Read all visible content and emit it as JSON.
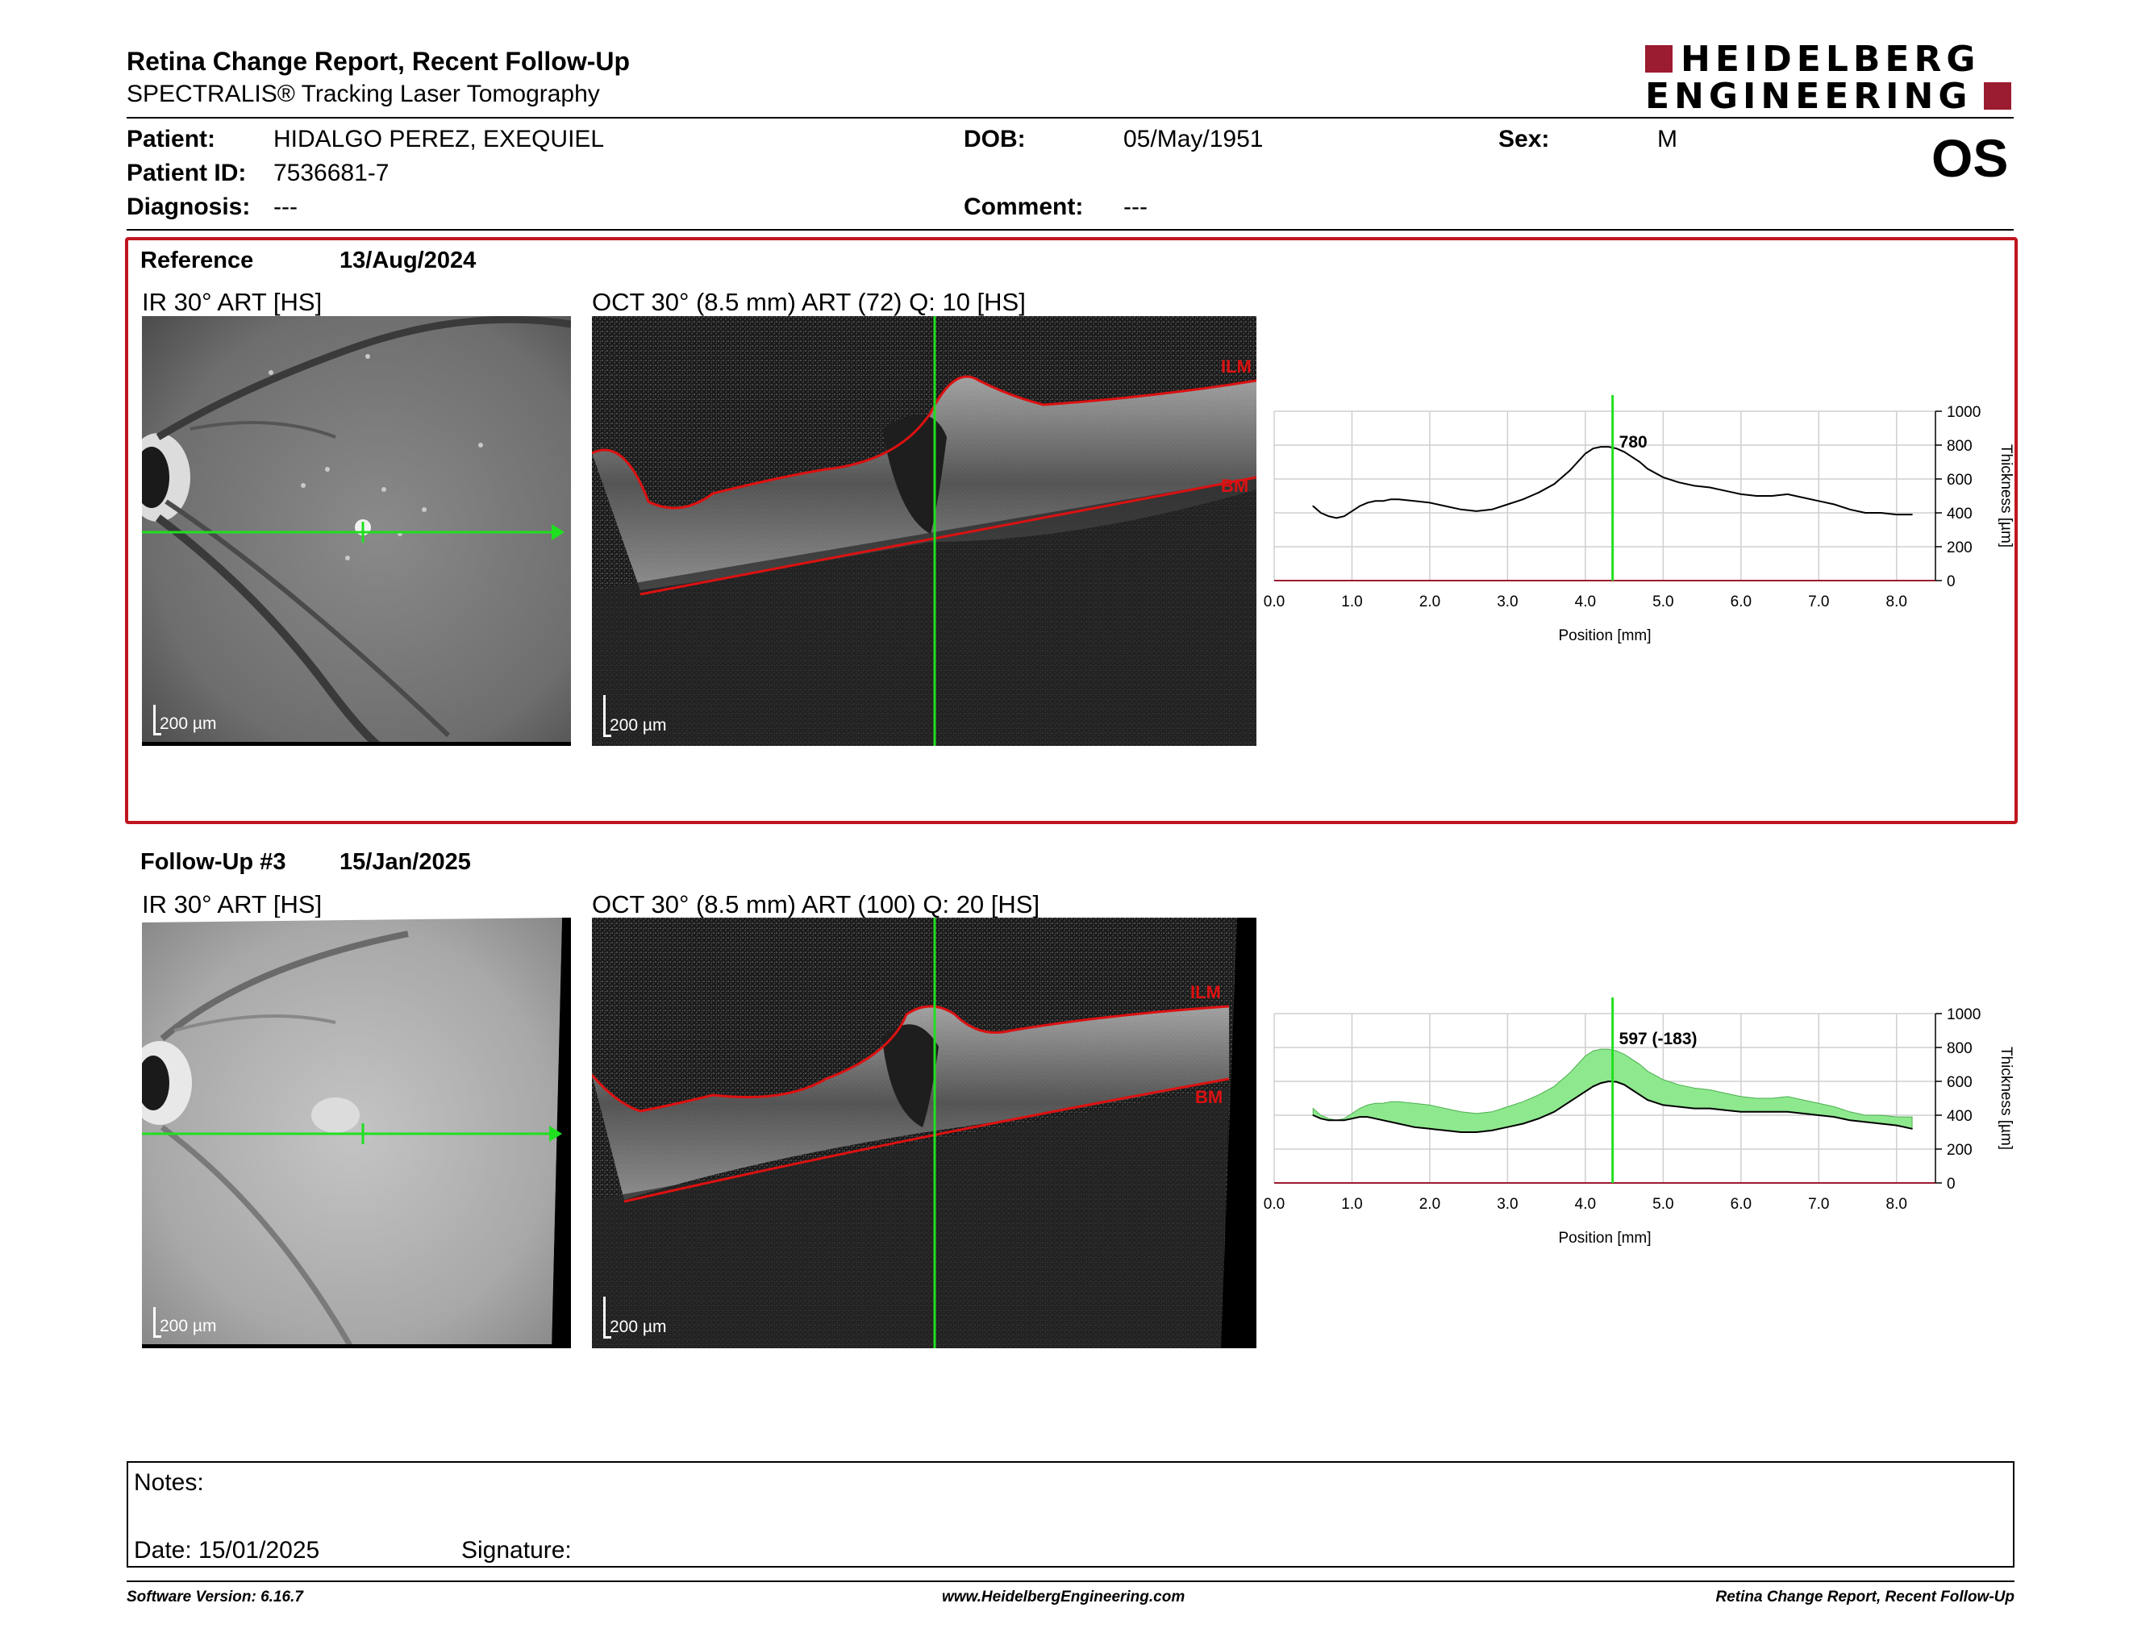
{
  "header": {
    "title": "Retina Change Report, Recent Follow-Up",
    "subtitle": "SPECTRALIS® Tracking Laser Tomography",
    "logo_line1": "HEIDELBERG",
    "logo_line2": "ENGINEERING",
    "brand_color": "#9b1b30"
  },
  "patient": {
    "patient_label": "Patient:",
    "patient_name": "HIDALGO PEREZ, EXEQUIEL",
    "dob_label": "DOB:",
    "dob": "05/May/1951",
    "sex_label": "Sex:",
    "sex": "M",
    "id_label": "Patient ID:",
    "id": "7536681-7",
    "diagnosis_label": "Diagnosis:",
    "diagnosis": "---",
    "comment_label": "Comment:",
    "comment": "---",
    "eye": "OS"
  },
  "reference": {
    "label": "Reference",
    "date": "13/Aug/2024",
    "ir_title": "IR 30° ART [HS]",
    "oct_title": "OCT 30° (8.5 mm) ART (72) Q: 10 [HS]",
    "scale_ir": "200 µm",
    "scale_oct": "200 µm",
    "ilm_label": "ILM",
    "bm_label": "BM",
    "border_color": "#c0151f"
  },
  "followup": {
    "label": "Follow-Up #3",
    "date": "15/Jan/2025",
    "ir_title": "IR 30° ART [HS]",
    "oct_title": "OCT 30° (8.5 mm) ART (100) Q: 20 [HS]",
    "scale_ir": "200 µm",
    "scale_oct": "200 µm",
    "ilm_label": "ILM",
    "bm_label": "BM"
  },
  "chart_data": [
    {
      "type": "line",
      "xlabel": "Position [mm]",
      "ylabel": "Thickness [µm]",
      "xlim": [
        0,
        8.5
      ],
      "ylim": [
        0,
        1000
      ],
      "xticks": [
        "0.0",
        "1.0",
        "2.0",
        "3.0",
        "4.0",
        "5.0",
        "6.0",
        "7.0",
        "8.0"
      ],
      "yticks": [
        "0",
        "200",
        "400",
        "600",
        "800",
        "1000"
      ],
      "grid": true,
      "cursor_x": 4.35,
      "cursor_label": "780",
      "series": [
        {
          "x": [
            0.5,
            0.6,
            0.7,
            0.8,
            0.9,
            1.0,
            1.1,
            1.2,
            1.3,
            1.4,
            1.5,
            1.6,
            1.8,
            2.0,
            2.2,
            2.4,
            2.6,
            2.8,
            3.0,
            3.2,
            3.4,
            3.6,
            3.8,
            4.0,
            4.1,
            4.2,
            4.3,
            4.4,
            4.5,
            4.6,
            4.7,
            4.8,
            5.0,
            5.2,
            5.4,
            5.6,
            5.8,
            6.0,
            6.2,
            6.4,
            6.6,
            6.8,
            7.0,
            7.2,
            7.4,
            7.6,
            7.8,
            8.0,
            8.2
          ],
          "values": [
            440,
            400,
            380,
            370,
            380,
            410,
            440,
            460,
            470,
            470,
            480,
            480,
            470,
            460,
            440,
            420,
            410,
            420,
            450,
            480,
            520,
            570,
            650,
            750,
            780,
            790,
            790,
            780,
            760,
            730,
            700,
            660,
            610,
            580,
            560,
            550,
            530,
            510,
            500,
            500,
            510,
            490,
            470,
            450,
            420,
            400,
            400,
            390,
            390
          ]
        }
      ]
    },
    {
      "type": "area",
      "xlabel": "Position [mm]",
      "ylabel": "Thickness [µm]",
      "xlim": [
        0,
        8.5
      ],
      "ylim": [
        0,
        1000
      ],
      "xticks": [
        "0.0",
        "1.0",
        "2.0",
        "3.0",
        "4.0",
        "5.0",
        "6.0",
        "7.0",
        "8.0"
      ],
      "yticks": [
        "0",
        "200",
        "400",
        "600",
        "800",
        "1000"
      ],
      "grid": true,
      "cursor_x": 4.35,
      "cursor_label": "597 (-183)",
      "fill_color": "#8ee88e",
      "series": [
        {
          "x": [
            0.5,
            0.6,
            0.7,
            0.8,
            0.9,
            1.0,
            1.1,
            1.2,
            1.3,
            1.4,
            1.5,
            1.6,
            1.8,
            2.0,
            2.2,
            2.4,
            2.6,
            2.8,
            3.0,
            3.2,
            3.4,
            3.6,
            3.8,
            4.0,
            4.1,
            4.2,
            4.3,
            4.4,
            4.5,
            4.6,
            4.7,
            4.8,
            5.0,
            5.2,
            5.4,
            5.6,
            5.8,
            6.0,
            6.2,
            6.4,
            6.6,
            6.8,
            7.0,
            7.2,
            7.4,
            7.6,
            7.8,
            8.0,
            8.2
          ],
          "values": [
            400,
            380,
            370,
            370,
            370,
            380,
            390,
            390,
            380,
            370,
            360,
            350,
            330,
            320,
            310,
            300,
            300,
            310,
            330,
            350,
            380,
            420,
            480,
            540,
            570,
            590,
            600,
            597,
            580,
            550,
            520,
            490,
            460,
            450,
            440,
            440,
            430,
            420,
            420,
            420,
            420,
            410,
            400,
            390,
            370,
            360,
            350,
            340,
            320
          ]
        }
      ]
    }
  ],
  "notes": {
    "notes_label": "Notes:",
    "date_label": "Date: 15/01/2025",
    "signature_label": "Signature:"
  },
  "footer": {
    "software": "Software Version: 6.16.7",
    "url": "www.HeidelbergEngineering.com",
    "report": "Retina Change Report, Recent Follow-Up"
  }
}
